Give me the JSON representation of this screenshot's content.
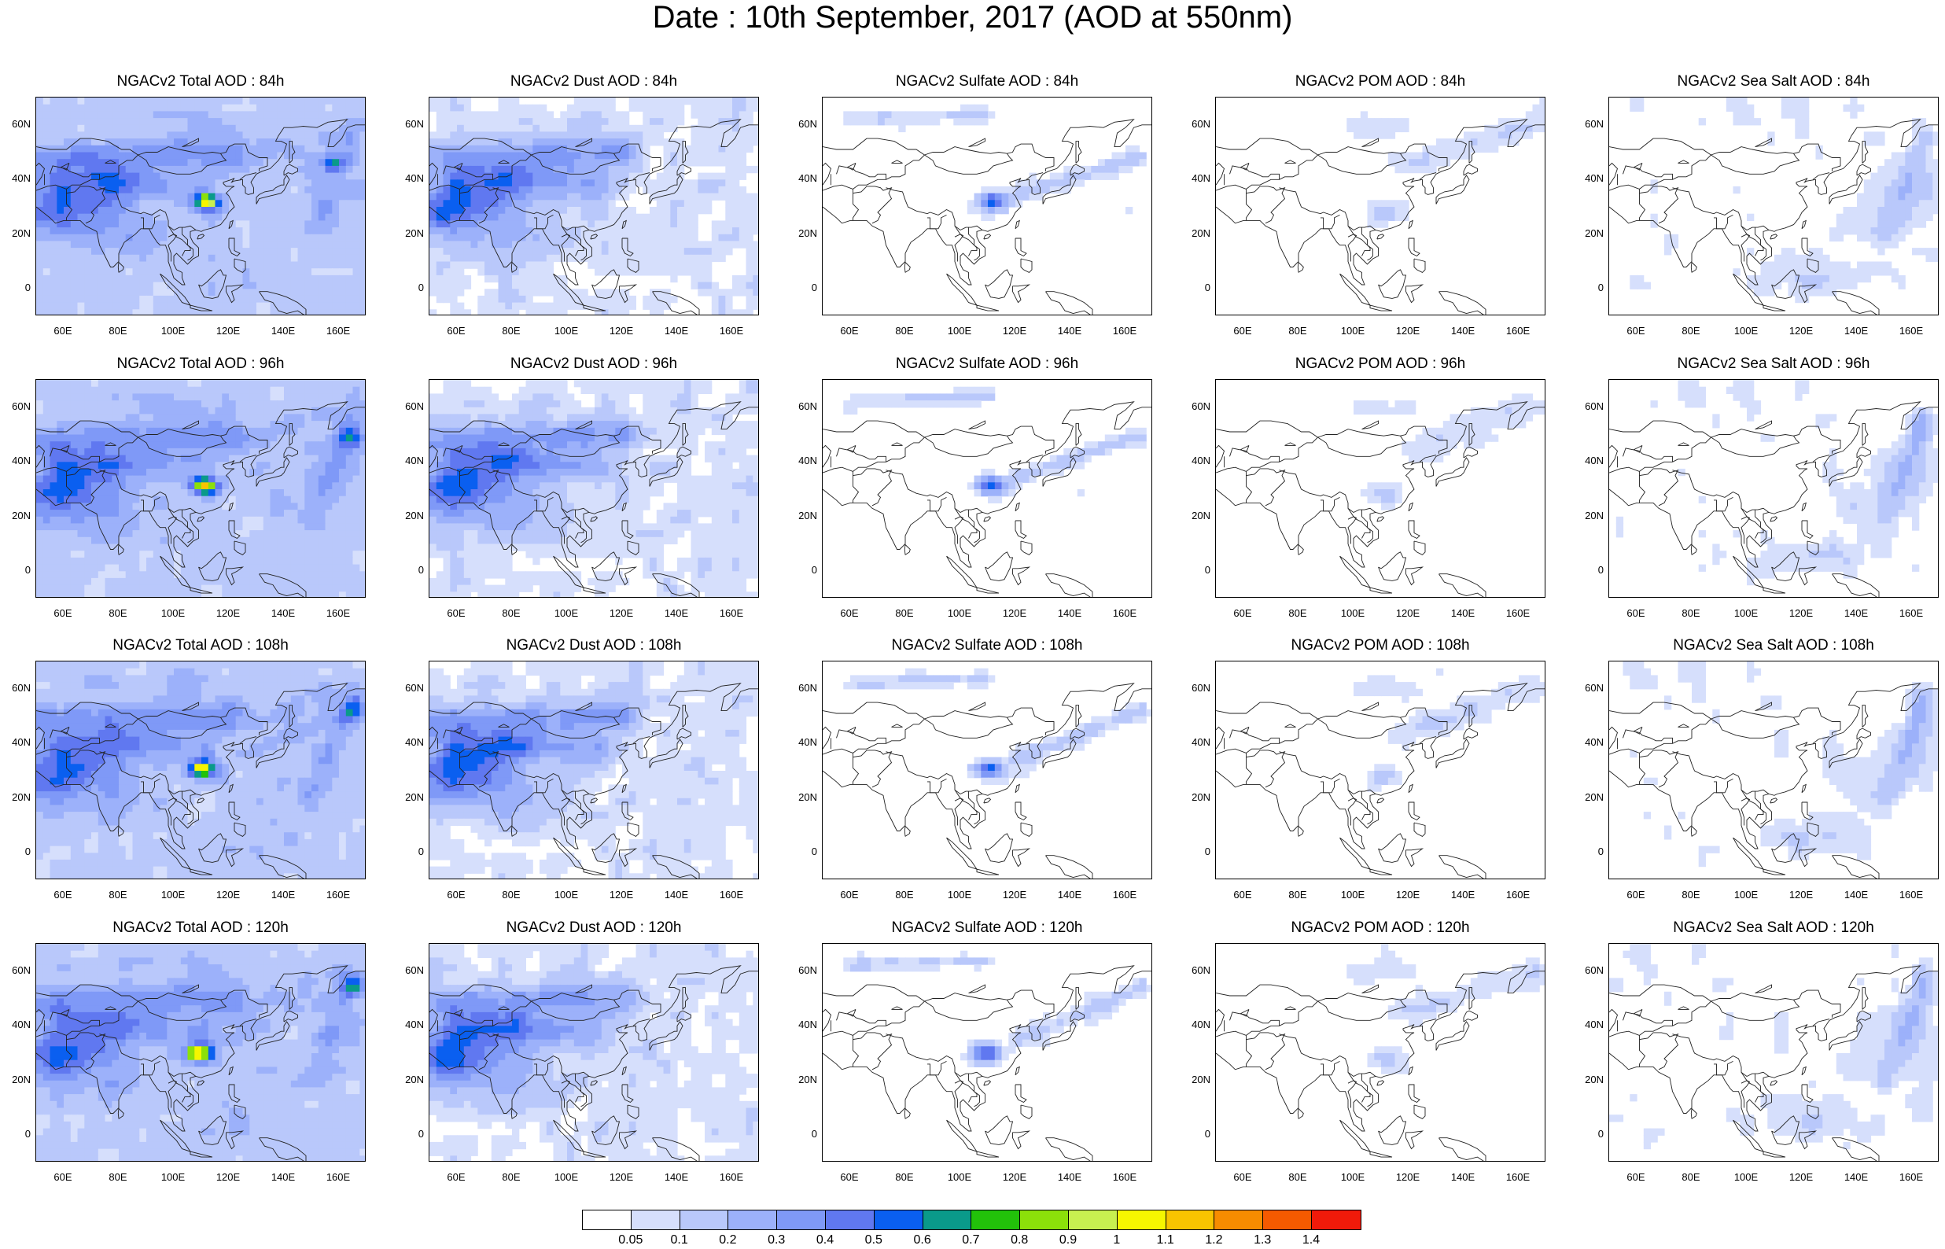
{
  "title": "Date : 10th September, 2017 (AOD at 550nm)",
  "map": {
    "lon_range": [
      50,
      170
    ],
    "lat_range": [
      -10,
      70
    ],
    "lat_tick_labels": [
      {
        "lat": 60,
        "label": "60N"
      },
      {
        "lat": 40,
        "label": "40N"
      },
      {
        "lat": 20,
        "label": "20N"
      },
      {
        "lat": 0,
        "label": "0"
      }
    ],
    "lon_tick_labels": [
      {
        "lon": 60,
        "label": "60E"
      },
      {
        "lon": 80,
        "label": "80E"
      },
      {
        "lon": 100,
        "label": "100E"
      },
      {
        "lon": 120,
        "label": "120E"
      },
      {
        "lon": 140,
        "label": "140E"
      },
      {
        "lon": 160,
        "label": "160E"
      }
    ]
  },
  "panels": [
    [
      "NGACv2 Total AOD : 84h",
      "NGACv2 Dust AOD : 84h",
      "NGACv2 Sulfate AOD : 84h",
      "NGACv2 POM AOD : 84h",
      "NGACv2 Sea Salt AOD : 84h"
    ],
    [
      "NGACv2 Total AOD : 96h",
      "NGACv2 Dust AOD : 96h",
      "NGACv2 Sulfate AOD : 96h",
      "NGACv2 POM AOD : 96h",
      "NGACv2 Sea Salt AOD : 96h"
    ],
    [
      "NGACv2 Total AOD : 108h",
      "NGACv2 Dust AOD : 108h",
      "NGACv2 Sulfate AOD : 108h",
      "NGACv2 POM AOD : 108h",
      "NGACv2 Sea Salt AOD : 108h"
    ],
    [
      "NGACv2 Total AOD : 120h",
      "NGACv2 Dust AOD : 120h",
      "NGACv2 Sulfate AOD : 120h",
      "NGACv2 POM AOD : 120h",
      "NGACv2 Sea Salt  AOD : 120h"
    ]
  ],
  "colorbar": {
    "labels": [
      "0.05",
      "0.1",
      "0.2",
      "0.3",
      "0.4",
      "0.5",
      "0.6",
      "0.7",
      "0.8",
      "0.9",
      "1",
      "1.1",
      "1.2",
      "1.3",
      "1.4"
    ],
    "colors": [
      "#ffffff",
      "#d6dffc",
      "#b9c8fb",
      "#9cb1fa",
      "#7f99f7",
      "#6078f0",
      "#0a5ff0",
      "#0a9a8a",
      "#22c20a",
      "#8ce00a",
      "#c8f050",
      "#f6f600",
      "#f8c400",
      "#f78c00",
      "#f55a00",
      "#f01a0a"
    ]
  }
}
